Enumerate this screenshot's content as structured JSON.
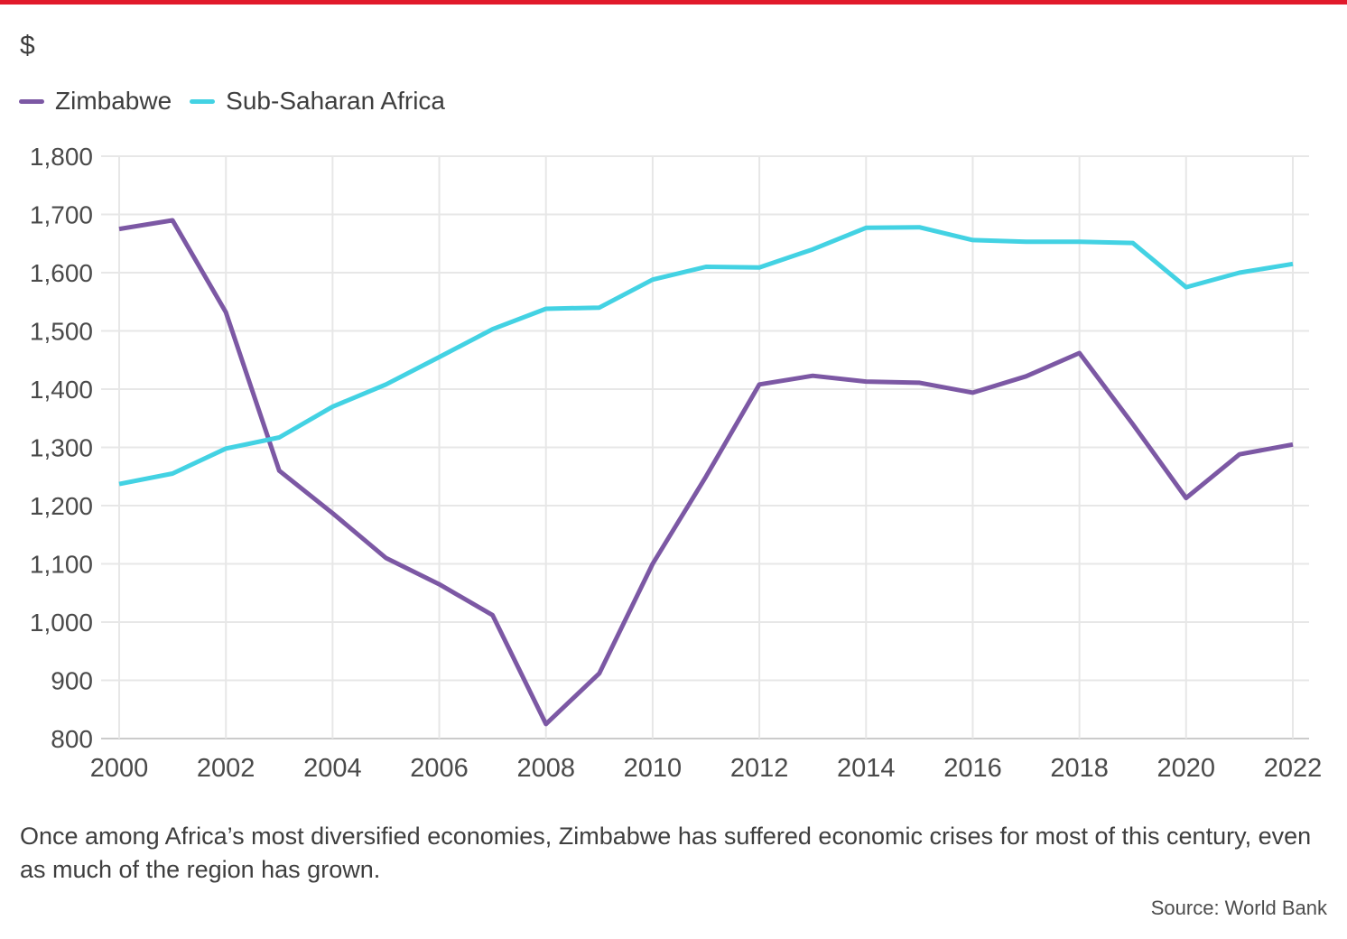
{
  "header": {
    "unit_label": "$",
    "top_bar_color": "#e11a2b"
  },
  "caption": {
    "text": "Once among Africa’s most diversified economies, Zimbabwe has suffered economic crises for most of this century, even as much of the region has grown."
  },
  "source": {
    "text": "Source: World Bank"
  },
  "chart_data": {
    "type": "line",
    "title": "",
    "ylabel": "$",
    "xlabel": "",
    "ylim": [
      800,
      1800
    ],
    "ytick_step": 100,
    "ytick_labels": [
      "800",
      "900",
      "1,000",
      "1,100",
      "1,200",
      "1,300",
      "1,400",
      "1,500",
      "1,600",
      "1,700",
      "1,800"
    ],
    "xlim": [
      2000,
      2022
    ],
    "xticks": [
      2000,
      2002,
      2004,
      2006,
      2008,
      2010,
      2012,
      2014,
      2016,
      2018,
      2020,
      2022
    ],
    "grid": true,
    "legend_position": "top-left",
    "x": [
      2000,
      2001,
      2002,
      2003,
      2004,
      2005,
      2006,
      2007,
      2008,
      2009,
      2010,
      2011,
      2012,
      2013,
      2014,
      2015,
      2016,
      2017,
      2018,
      2019,
      2020,
      2021,
      2022
    ],
    "series": [
      {
        "name": "Zimbabwe",
        "color": "#7c58a4",
        "values": [
          1675,
          1690,
          1532,
          1260,
          1187,
          1110,
          1065,
          1012,
          825,
          912,
          1100,
          1250,
          1408,
          1423,
          1413,
          1411,
          1394,
          1422,
          1462,
          1340,
          1213,
          1288,
          1305
        ]
      },
      {
        "name": "Sub-Saharan Africa",
        "color": "#43d2e3",
        "values": [
          1237,
          1255,
          1298,
          1317,
          1370,
          1408,
          1455,
          1503,
          1538,
          1540,
          1588,
          1610,
          1609,
          1640,
          1677,
          1678,
          1656,
          1653,
          1653,
          1651,
          1575,
          1600,
          1615
        ]
      }
    ]
  }
}
